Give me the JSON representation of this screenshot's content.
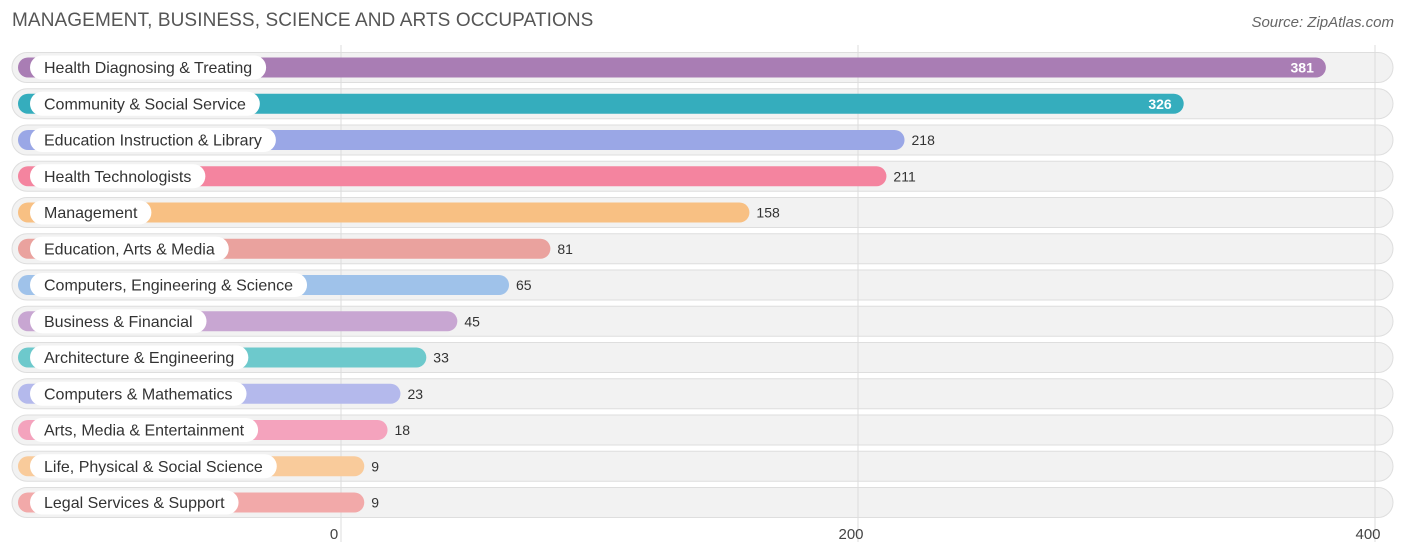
{
  "header": {
    "title": "MANAGEMENT, BUSINESS, SCIENCE AND ARTS OCCUPATIONS",
    "source": "Source: ZipAtlas.com"
  },
  "chart_data": {
    "type": "bar",
    "orientation": "horizontal",
    "title": "MANAGEMENT, BUSINESS, SCIENCE AND ARTS OCCUPATIONS",
    "xlabel": "",
    "ylabel": "",
    "xlim": [
      0,
      400
    ],
    "x_ticks": [
      "0",
      "200",
      "400"
    ],
    "grid": true,
    "categories": [
      "Health Diagnosing & Treating",
      "Community & Social Service",
      "Education Instruction & Library",
      "Health Technologists",
      "Management",
      "Education, Arts & Media",
      "Computers, Engineering & Science",
      "Business & Financial",
      "Architecture & Engineering",
      "Computers & Mathematics",
      "Arts, Media & Entertainment",
      "Life, Physical & Social Science",
      "Legal Services & Support"
    ],
    "values": [
      381,
      326,
      218,
      211,
      158,
      81,
      65,
      45,
      33,
      23,
      18,
      9,
      9
    ],
    "colors": [
      "#a97db4",
      "#35adbd",
      "#9aa7e6",
      "#f4849f",
      "#f8c083",
      "#eaa29e",
      "#9fc2ea",
      "#c8a6d2",
      "#6dc9cc",
      "#b4b9ec",
      "#f4a3bd",
      "#f9cb9b",
      "#f2a9a9"
    ]
  }
}
